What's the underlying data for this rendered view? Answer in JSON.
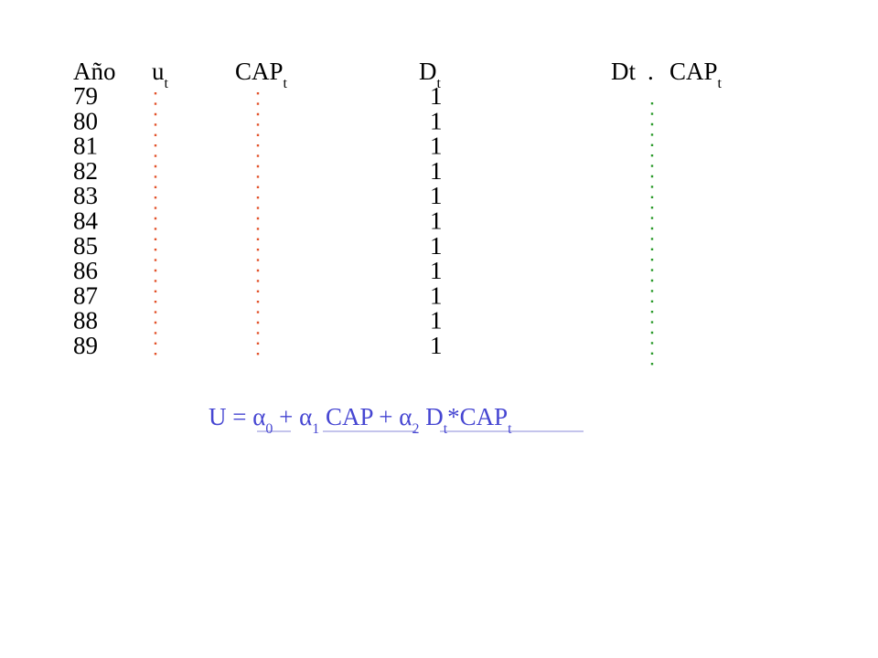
{
  "table": {
    "headers": [
      {
        "text": "Año"
      },
      {
        "text": "u",
        "sub": "t"
      },
      {
        "text": "CAP",
        "sub": "t"
      },
      {
        "text": "D",
        "sub": "t"
      },
      {
        "text": "Dt"
      },
      {
        "text": "."
      },
      {
        "text": "CAP",
        "sub": "t"
      }
    ],
    "rows": [
      [
        "79",
        "1"
      ],
      [
        "80",
        "1"
      ],
      [
        "81",
        "1"
      ],
      [
        "82",
        "1"
      ],
      [
        "83",
        "1"
      ],
      [
        "84",
        "1"
      ],
      [
        "85",
        "1"
      ],
      [
        "86",
        "1"
      ],
      [
        "87",
        "1"
      ],
      [
        "88",
        "1"
      ],
      [
        "89",
        "1"
      ]
    ]
  },
  "equation": {
    "parts": [
      {
        "text": "U = "
      },
      {
        "text": "α",
        "sub": "0"
      },
      {
        "text": " + "
      },
      {
        "text": "α",
        "sub": "1"
      },
      {
        "text": " CAP + "
      },
      {
        "text": "α",
        "sub": "2"
      },
      {
        "text": " D",
        "sub": "t"
      },
      {
        "text": "*CAP",
        "sub": "t"
      }
    ]
  }
}
